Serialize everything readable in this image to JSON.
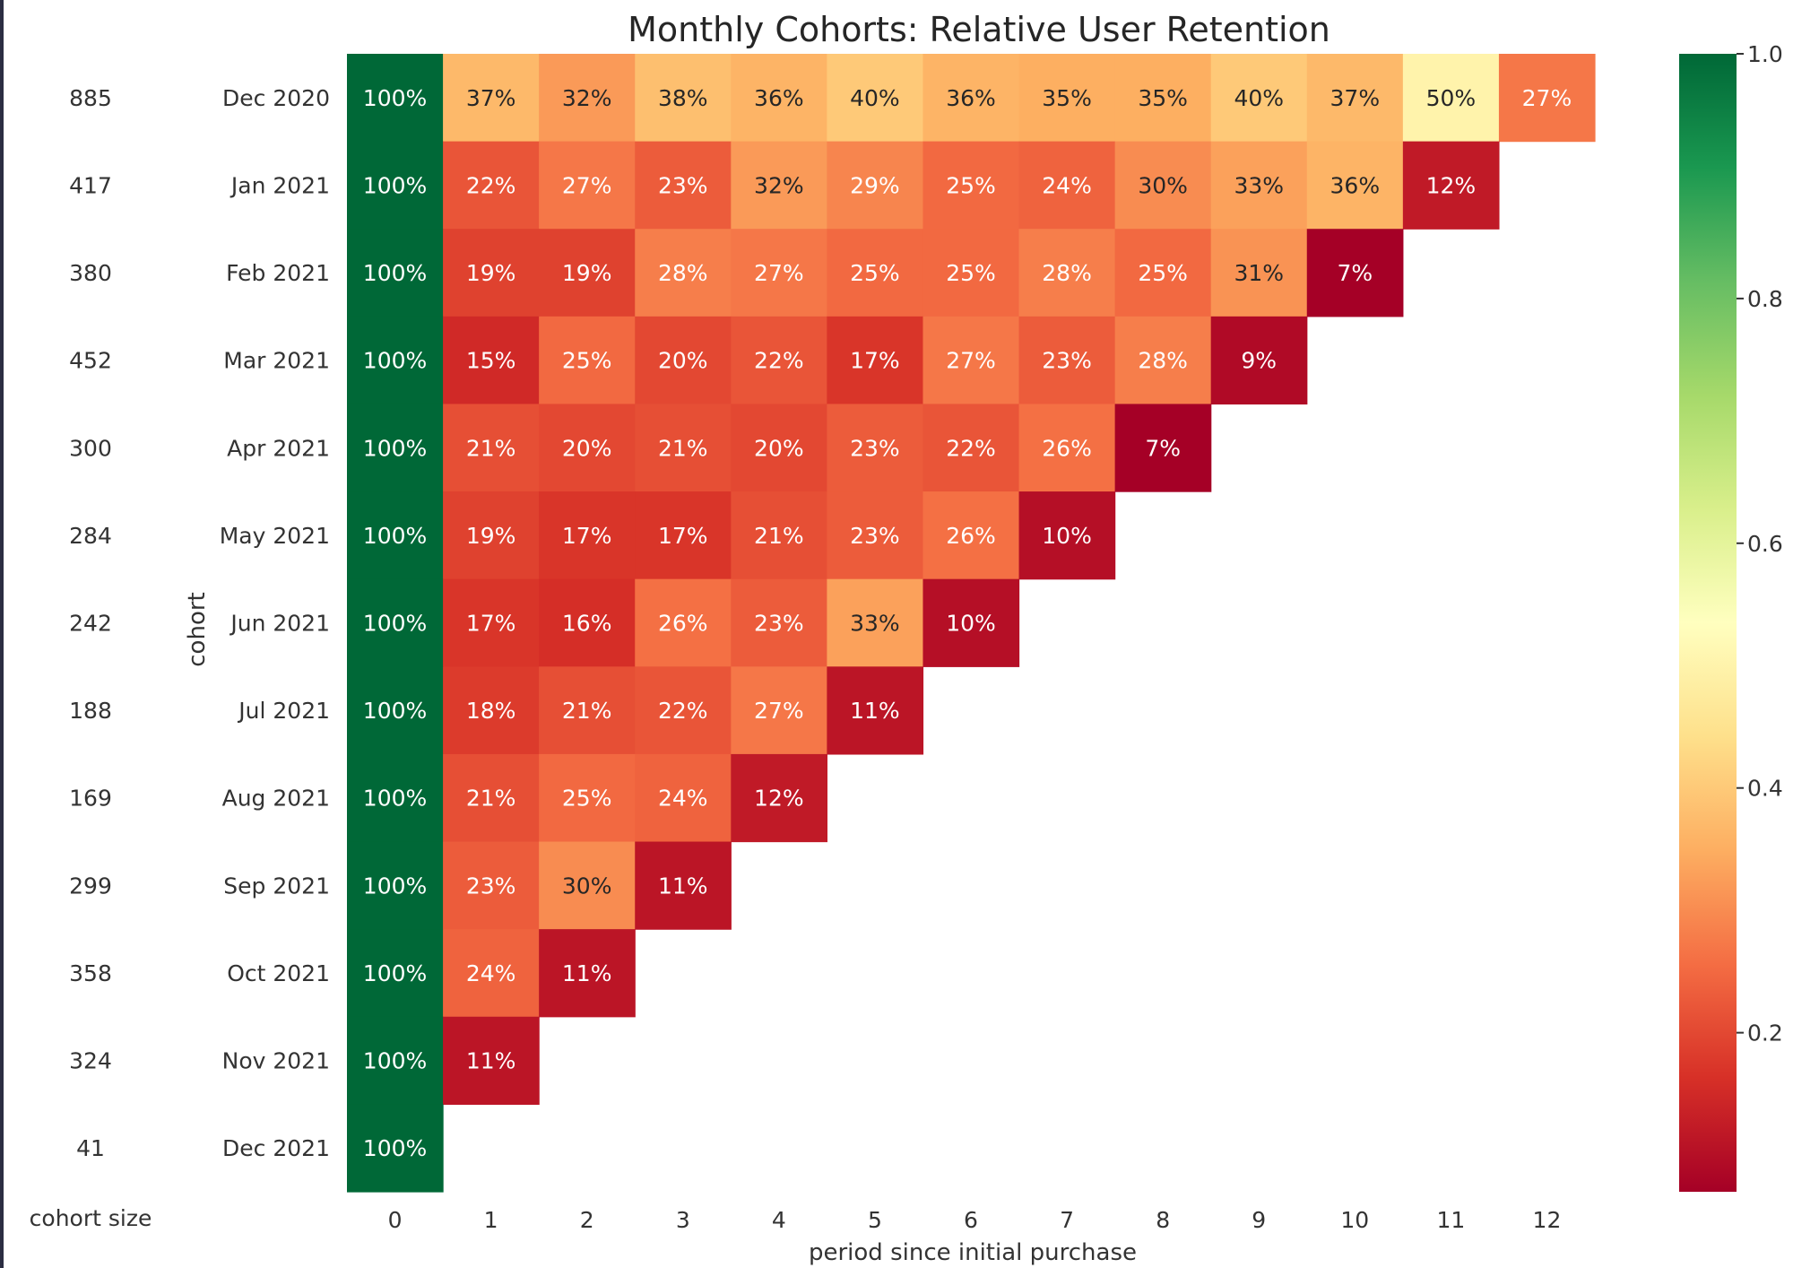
{
  "chart_data": {
    "type": "heatmap",
    "title": "Monthly Cohorts: Relative User Retention",
    "xlabel": "period since initial purchase",
    "ylabel": "cohort",
    "size_label": "cohort size",
    "x_categories": [
      "0",
      "1",
      "2",
      "3",
      "4",
      "5",
      "6",
      "7",
      "8",
      "9",
      "10",
      "11",
      "12"
    ],
    "cohorts": [
      "Dec 2020",
      "Jan 2021",
      "Feb 2021",
      "Mar 2021",
      "Apr 2021",
      "May 2021",
      "Jun 2021",
      "Jul 2021",
      "Aug 2021",
      "Sep 2021",
      "Oct 2021",
      "Nov 2021",
      "Dec 2021"
    ],
    "cohort_sizes": [
      "885",
      "417",
      "380",
      "452",
      "300",
      "284",
      "242",
      "188",
      "169",
      "299",
      "358",
      "324",
      "41"
    ],
    "values": [
      [
        1.0,
        0.37,
        0.32,
        0.38,
        0.36,
        0.4,
        0.36,
        0.35,
        0.35,
        0.4,
        0.37,
        0.5,
        0.27
      ],
      [
        1.0,
        0.22,
        0.27,
        0.23,
        0.32,
        0.29,
        0.25,
        0.24,
        0.3,
        0.33,
        0.36,
        0.12
      ],
      [
        1.0,
        0.19,
        0.19,
        0.28,
        0.27,
        0.25,
        0.25,
        0.28,
        0.25,
        0.31,
        0.07
      ],
      [
        1.0,
        0.15,
        0.25,
        0.2,
        0.22,
        0.17,
        0.27,
        0.23,
        0.28,
        0.09
      ],
      [
        1.0,
        0.21,
        0.2,
        0.21,
        0.2,
        0.23,
        0.22,
        0.26,
        0.07
      ],
      [
        1.0,
        0.19,
        0.17,
        0.17,
        0.21,
        0.23,
        0.26,
        0.1
      ],
      [
        1.0,
        0.17,
        0.16,
        0.26,
        0.23,
        0.33,
        0.1
      ],
      [
        1.0,
        0.18,
        0.21,
        0.22,
        0.27,
        0.11
      ],
      [
        1.0,
        0.21,
        0.25,
        0.24,
        0.12
      ],
      [
        1.0,
        0.23,
        0.3,
        0.11
      ],
      [
        1.0,
        0.24,
        0.11
      ],
      [
        1.0,
        0.11
      ],
      [
        1.0
      ]
    ],
    "colorbar": {
      "colormap": "RdYlGn",
      "range": [
        0.07,
        1.0
      ],
      "ticks": [
        0.2,
        0.4,
        0.6,
        0.8,
        1.0
      ],
      "tick_labels": [
        "0.2",
        "0.4",
        "0.6",
        "0.8",
        "1.0"
      ]
    },
    "colors": {
      "text_dark": "#262626",
      "text_light": "#ffffff",
      "label_color": "#333333"
    }
  }
}
